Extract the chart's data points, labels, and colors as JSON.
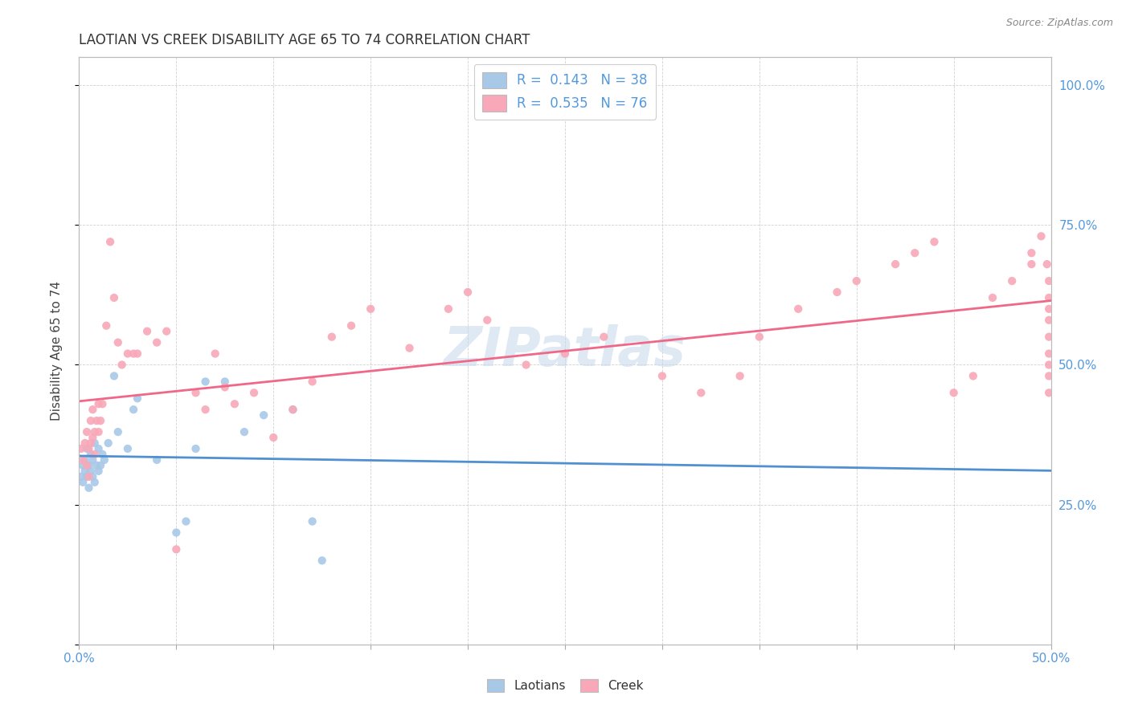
{
  "title": "LAOTIAN VS CREEK DISABILITY AGE 65 TO 74 CORRELATION CHART",
  "source": "Source: ZipAtlas.com",
  "ylabel": "Disability Age 65 to 74",
  "xlim": [
    0.0,
    0.5
  ],
  "ylim": [
    0.0,
    1.05
  ],
  "ytick_positions": [
    0.0,
    0.25,
    0.5,
    0.75,
    1.0
  ],
  "right_yticklabels": [
    "",
    "25.0%",
    "50.0%",
    "75.0%",
    "100.0%"
  ],
  "laotian_R": 0.143,
  "laotian_N": 38,
  "creek_R": 0.535,
  "creek_N": 76,
  "laotian_color": "#a8c8e8",
  "creek_color": "#f8a8b8",
  "laotian_line_color": "#5090d0",
  "creek_line_color": "#f06888",
  "tick_color": "#5599dd",
  "watermark_color": "#c5d8ea",
  "laotian_x": [
    0.001,
    0.002,
    0.002,
    0.003,
    0.003,
    0.004,
    0.004,
    0.005,
    0.005,
    0.006,
    0.006,
    0.007,
    0.007,
    0.008,
    0.008,
    0.009,
    0.01,
    0.01,
    0.011,
    0.012,
    0.013,
    0.015,
    0.018,
    0.02,
    0.025,
    0.028,
    0.03,
    0.04,
    0.05,
    0.055,
    0.06,
    0.065,
    0.075,
    0.085,
    0.095,
    0.11,
    0.12,
    0.125
  ],
  "laotian_y": [
    0.3,
    0.29,
    0.32,
    0.31,
    0.33,
    0.3,
    0.35,
    0.32,
    0.28,
    0.34,
    0.31,
    0.3,
    0.33,
    0.29,
    0.36,
    0.32,
    0.31,
    0.35,
    0.32,
    0.34,
    0.33,
    0.36,
    0.48,
    0.38,
    0.35,
    0.42,
    0.44,
    0.33,
    0.2,
    0.22,
    0.35,
    0.47,
    0.47,
    0.38,
    0.41,
    0.42,
    0.22,
    0.15
  ],
  "creek_x": [
    0.001,
    0.002,
    0.003,
    0.004,
    0.004,
    0.005,
    0.005,
    0.006,
    0.006,
    0.007,
    0.007,
    0.008,
    0.008,
    0.009,
    0.01,
    0.01,
    0.011,
    0.012,
    0.014,
    0.016,
    0.018,
    0.02,
    0.022,
    0.025,
    0.028,
    0.03,
    0.035,
    0.04,
    0.045,
    0.05,
    0.06,
    0.065,
    0.07,
    0.075,
    0.08,
    0.09,
    0.1,
    0.11,
    0.12,
    0.13,
    0.14,
    0.15,
    0.17,
    0.19,
    0.2,
    0.21,
    0.23,
    0.25,
    0.27,
    0.3,
    0.32,
    0.34,
    0.35,
    0.37,
    0.39,
    0.4,
    0.42,
    0.43,
    0.44,
    0.45,
    0.46,
    0.47,
    0.48,
    0.49,
    0.49,
    0.495,
    0.498,
    0.499,
    0.499,
    0.499,
    0.499,
    0.499,
    0.499,
    0.499,
    0.499,
    0.499
  ],
  "creek_y": [
    0.35,
    0.33,
    0.36,
    0.32,
    0.38,
    0.35,
    0.3,
    0.36,
    0.4,
    0.37,
    0.42,
    0.38,
    0.34,
    0.4,
    0.43,
    0.38,
    0.4,
    0.43,
    0.57,
    0.72,
    0.62,
    0.54,
    0.5,
    0.52,
    0.52,
    0.52,
    0.56,
    0.54,
    0.56,
    0.17,
    0.45,
    0.42,
    0.52,
    0.46,
    0.43,
    0.45,
    0.37,
    0.42,
    0.47,
    0.55,
    0.57,
    0.6,
    0.53,
    0.6,
    0.63,
    0.58,
    0.5,
    0.52,
    0.55,
    0.48,
    0.45,
    0.48,
    0.55,
    0.6,
    0.63,
    0.65,
    0.68,
    0.7,
    0.72,
    0.45,
    0.48,
    0.62,
    0.65,
    0.68,
    0.7,
    0.73,
    0.68,
    0.65,
    0.62,
    0.6,
    0.58,
    0.55,
    0.52,
    0.5,
    0.48,
    0.45
  ]
}
